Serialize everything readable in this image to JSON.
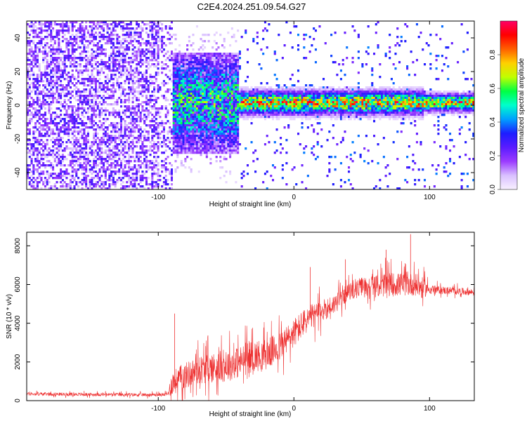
{
  "title": "C2E4.2024.251.09.54.G27",
  "chart_data": [
    {
      "type": "heatmap",
      "xlabel": "Height of straight line (km)",
      "ylabel": "Frequency (Hz)",
      "xlim": [
        -197,
        133
      ],
      "ylim": [
        -50,
        50
      ],
      "xticks": [
        -100,
        0,
        100
      ],
      "yticks": [
        -40,
        -20,
        0,
        20,
        40
      ],
      "colorbar": {
        "label": "Normalized spectral amplitude",
        "range": [
          0,
          1
        ],
        "ticks": [
          0.0,
          0.2,
          0.4,
          0.6,
          0.8
        ],
        "tick_labels": [
          "0.0",
          "0.2",
          "0.4",
          "0.6",
          "0.8"
        ],
        "colormap": [
          "#f8f0ff",
          "#d9c0ff",
          "#9b3bff",
          "#5a1cff",
          "#1d1dff",
          "#00a0ff",
          "#00ffcc",
          "#00ff44",
          "#c0ff00",
          "#ffd000",
          "#ff6000",
          "#ff0000",
          "#ff0066"
        ]
      },
      "description_regions": [
        {
          "x_range": [
            -197,
            -90
          ],
          "freq_spread": 50,
          "intensity": 0.25
        },
        {
          "x_range": [
            -90,
            -40
          ],
          "freq_spread": 20,
          "intensity": 0.45
        },
        {
          "x_range": [
            -40,
            95
          ],
          "freq_spread": 4,
          "intensity": 0.8
        },
        {
          "x_range": [
            95,
            133
          ],
          "freq_spread": 3,
          "intensity": 0.55
        }
      ]
    },
    {
      "type": "line",
      "xlabel": "Height of straight line (km)",
      "ylabel": "SNR (10 * v/v)",
      "xlim": [
        -197,
        133
      ],
      "ylim": [
        0,
        8700
      ],
      "xticks": [
        -100,
        0,
        100
      ],
      "yticks": [
        0,
        2000,
        4000,
        6000,
        8000
      ],
      "series": [
        {
          "color": "#ee3333",
          "baseline": [
            [
              -197,
              350
            ],
            [
              -150,
              320
            ],
            [
              -100,
              300
            ],
            [
              -93,
              330
            ],
            [
              -90,
              900
            ],
            [
              -80,
              1300
            ],
            [
              -70,
              1600
            ],
            [
              -60,
              1700
            ],
            [
              -50,
              1800
            ],
            [
              -40,
              2000
            ],
            [
              -30,
              2300
            ],
            [
              -20,
              2400
            ],
            [
              -10,
              2800
            ],
            [
              0,
              3500
            ],
            [
              10,
              4200
            ],
            [
              20,
              4600
            ],
            [
              30,
              5000
            ],
            [
              40,
              5600
            ],
            [
              50,
              5900
            ],
            [
              60,
              5900
            ],
            [
              70,
              6000
            ],
            [
              80,
              6000
            ],
            [
              90,
              6000
            ],
            [
              95,
              5800
            ],
            [
              110,
              5700
            ],
            [
              133,
              5600
            ]
          ],
          "noise_amplitude": [
            [
              -197,
              120
            ],
            [
              -93,
              120
            ],
            [
              -90,
              900
            ],
            [
              -50,
              1200
            ],
            [
              0,
              1100
            ],
            [
              40,
              600
            ],
            [
              70,
              900
            ],
            [
              95,
              800
            ],
            [
              100,
              300
            ],
            [
              133,
              250
            ]
          ],
          "peaks": [
            {
              "x": -88,
              "y": 4500
            },
            {
              "x": 12,
              "y": 6900
            },
            {
              "x": 38,
              "y": 7300
            },
            {
              "x": 68,
              "y": 7800
            },
            {
              "x": 86,
              "y": 8600
            }
          ]
        }
      ]
    }
  ]
}
